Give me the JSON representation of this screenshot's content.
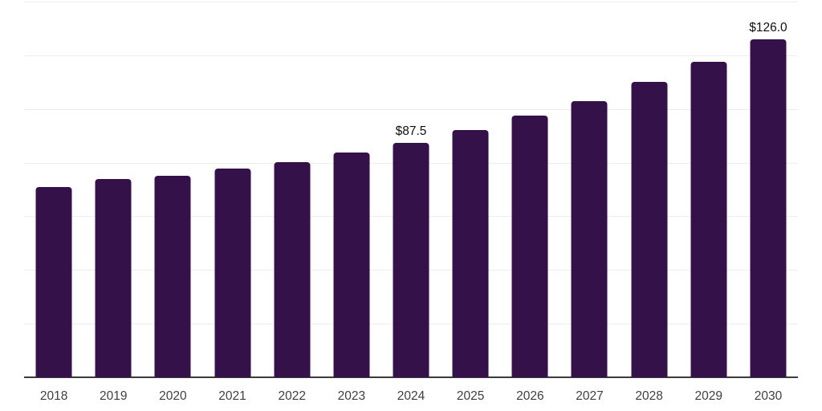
{
  "chart_data": {
    "type": "bar",
    "title": "",
    "xlabel": "",
    "ylabel": "",
    "categories": [
      "2018",
      "2019",
      "2020",
      "2021",
      "2022",
      "2023",
      "2024",
      "2025",
      "2026",
      "2027",
      "2028",
      "2029",
      "2030"
    ],
    "values": [
      70.8,
      73.8,
      75.1,
      77.7,
      80.2,
      83.9,
      87.5,
      92.2,
      97.5,
      103.0,
      110.0,
      117.5,
      126.0
    ],
    "data_labels": [
      "",
      "",
      "",
      "",
      "",
      "",
      "$87.5",
      "",
      "",
      "",
      "",
      "",
      "$126.0"
    ],
    "ylim": [
      0,
      140
    ],
    "gridline_values": [
      20,
      40,
      60,
      80,
      100,
      120,
      140
    ],
    "grid": "horizontal-only",
    "legend_position": "none",
    "yaxis_tick_labels": "none"
  },
  "colors": {
    "background": "#ffffff",
    "bar": "#35114a",
    "gridline": "#ededed",
    "axis_line": "#3c3c3c",
    "data_label": "#0f0f0f",
    "tick_label": "#3f3f3f"
  }
}
